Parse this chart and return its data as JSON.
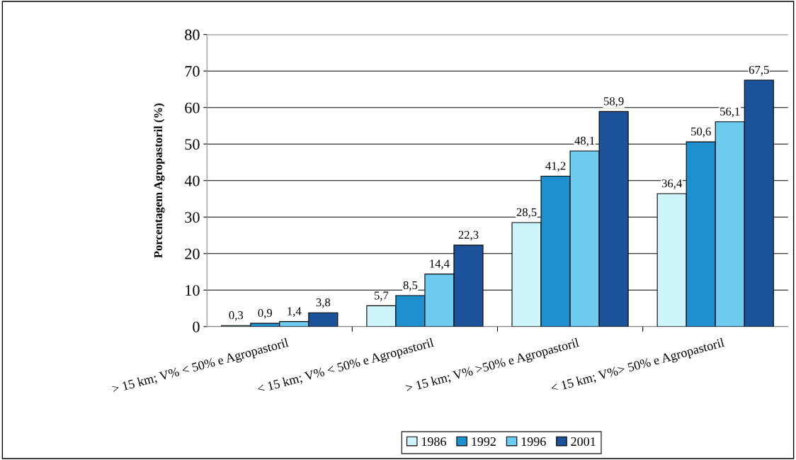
{
  "chart_data": {
    "type": "bar",
    "ylabel": "Porcentagem Agropastoril (%)",
    "categories": [
      "> 15 km; V% < 50% e Agropastoril",
      "< 15 km; V% < 50% e Agropastoril",
      "> 15 km; V% >50% e Agropastoril",
      "< 15 km; V%> 50% e Agropastoril"
    ],
    "series": [
      {
        "name": "1986",
        "color": "#cdf3fb",
        "values": [
          0.3,
          5.7,
          28.5,
          36.4
        ],
        "value_labels": [
          "0,3",
          "5,7",
          "28,5",
          "36,4"
        ]
      },
      {
        "name": "1992",
        "color": "#1e8fcf",
        "values": [
          0.9,
          8.5,
          41.2,
          50.6
        ],
        "value_labels": [
          "0,9",
          "8,5",
          "41,2",
          "50,6"
        ]
      },
      {
        "name": "1996",
        "color": "#6ccbee",
        "values": [
          1.4,
          14.4,
          48.1,
          56.1
        ],
        "value_labels": [
          "1,4",
          "14,4",
          "48,1",
          "56,1"
        ]
      },
      {
        "name": "2001",
        "color": "#1b5299",
        "values": [
          3.8,
          22.3,
          58.9,
          67.5
        ],
        "value_labels": [
          "3,8",
          "22,3",
          "58,9",
          "67,5"
        ]
      }
    ],
    "ylim": [
      0,
      80
    ],
    "yticks": [
      0,
      10,
      20,
      30,
      40,
      50,
      60,
      70,
      80
    ],
    "grid": "y",
    "legend": "bottom"
  }
}
